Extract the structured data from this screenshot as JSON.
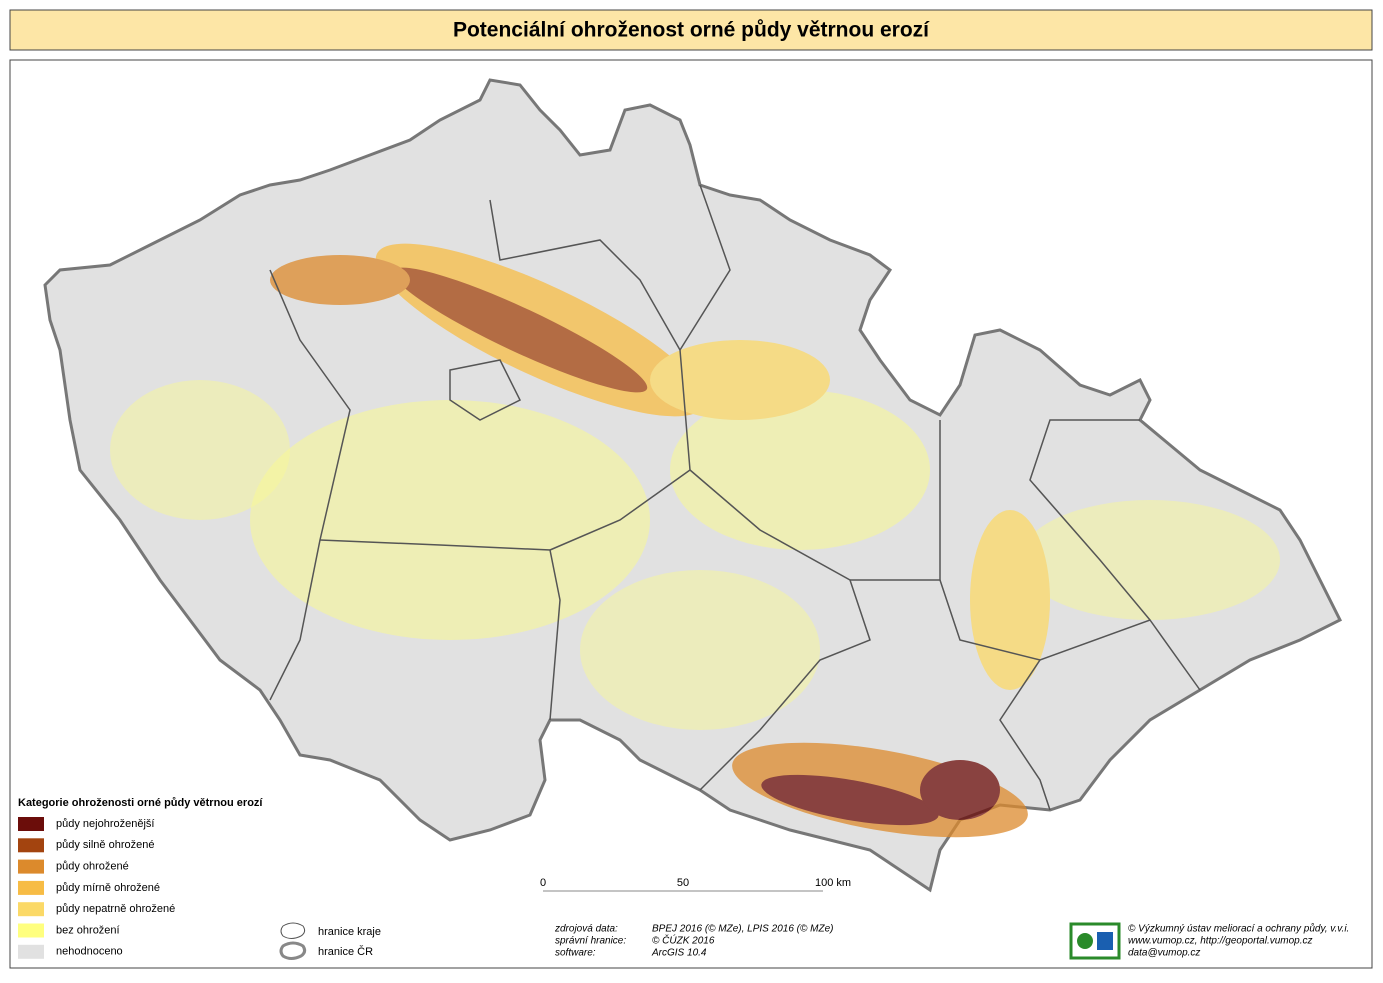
{
  "title": "Potenciální ohroženost orné půdy větrnou erozí",
  "legend": {
    "title": "Kategorie ohroženosti orné půdy větrnou erozí",
    "items": [
      {
        "label": "půdy nejohroženější",
        "color": "#6b0d0a"
      },
      {
        "label": "půdy silně ohrožené",
        "color": "#a3440f"
      },
      {
        "label": "půdy ohrožené",
        "color": "#dc8a2c"
      },
      {
        "label": "půdy mírně ohrožené",
        "color": "#f7bc45"
      },
      {
        "label": "půdy nepatrně ohrožené",
        "color": "#fbd967"
      },
      {
        "label": "bez ohrožení",
        "color": "#ffff7f"
      },
      {
        "label": "nehodnoceno",
        "color": "#e1e1e1"
      }
    ]
  },
  "boundaries": [
    "hranice kraje",
    "hranice ČR"
  ],
  "scale": [
    "0",
    "50",
    "100 km"
  ],
  "sources": [
    [
      "zdrojová data:",
      "BPEJ 2016 (© MZe), LPIS 2016 (© MZe)"
    ],
    [
      "správní hranice:",
      "© ČÚZK 2016"
    ],
    [
      "software:",
      "ArcGIS 10.4"
    ]
  ],
  "credits": [
    "© Výzkumný ústav meliorací a ochrany půdy, v.v.i.",
    "www.vumop.cz, http://geoportal.vumop.cz",
    "data@vumop.cz"
  ]
}
